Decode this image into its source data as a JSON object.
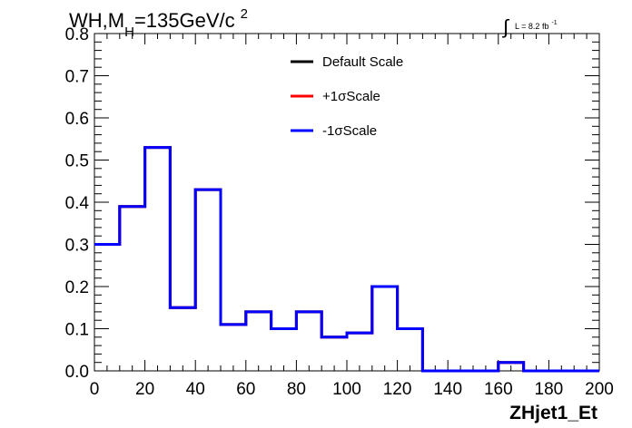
{
  "chart_data": {
    "type": "line",
    "title": {
      "main": "WH,M",
      "subscript": "H",
      "rest": "=135GeV/c",
      "superscript": "2"
    },
    "lumi": {
      "integral": "∫",
      "text": "L = 8.2 fb",
      "superscript": "-1"
    },
    "xlabel": "ZHjet1_Et",
    "ylabel": "",
    "xlim": [
      0,
      200
    ],
    "ylim": [
      0,
      0.8
    ],
    "x_ticks": [
      "0",
      "20",
      "40",
      "60",
      "80",
      "100",
      "120",
      "140",
      "160",
      "180",
      "200"
    ],
    "y_ticks": [
      "0.0",
      "0.1",
      "0.2",
      "0.3",
      "0.4",
      "0.5",
      "0.6",
      "0.7",
      "0.8"
    ],
    "bin_edges": [
      0,
      10,
      20,
      30,
      40,
      50,
      60,
      70,
      80,
      90,
      100,
      110,
      120,
      130,
      140,
      150,
      160,
      170,
      180,
      190,
      200
    ],
    "series": [
      {
        "name": "Default Scale",
        "color": "#000000",
        "values": [
          0.3,
          0.39,
          0.53,
          0.15,
          0.43,
          0.11,
          0.14,
          0.1,
          0.14,
          0.08,
          0.09,
          0.2,
          0.1,
          0.0,
          0.0,
          0.0,
          0.02,
          0.0,
          0.0,
          0.0
        ]
      },
      {
        "name": "+1σScale",
        "color": "#ff0000",
        "values": [
          0.3,
          0.39,
          0.53,
          0.15,
          0.43,
          0.11,
          0.14,
          0.1,
          0.14,
          0.08,
          0.09,
          0.2,
          0.1,
          0.0,
          0.0,
          0.0,
          0.02,
          0.0,
          0.0,
          0.0
        ]
      },
      {
        "name": "-1σScale",
        "color": "#0000ff",
        "values": [
          0.3,
          0.39,
          0.53,
          0.15,
          0.43,
          0.11,
          0.14,
          0.1,
          0.14,
          0.08,
          0.09,
          0.2,
          0.1,
          0.0,
          0.0,
          0.0,
          0.02,
          0.0,
          0.0,
          0.0
        ]
      }
    ],
    "legend_position": "top-center",
    "grid": false
  }
}
